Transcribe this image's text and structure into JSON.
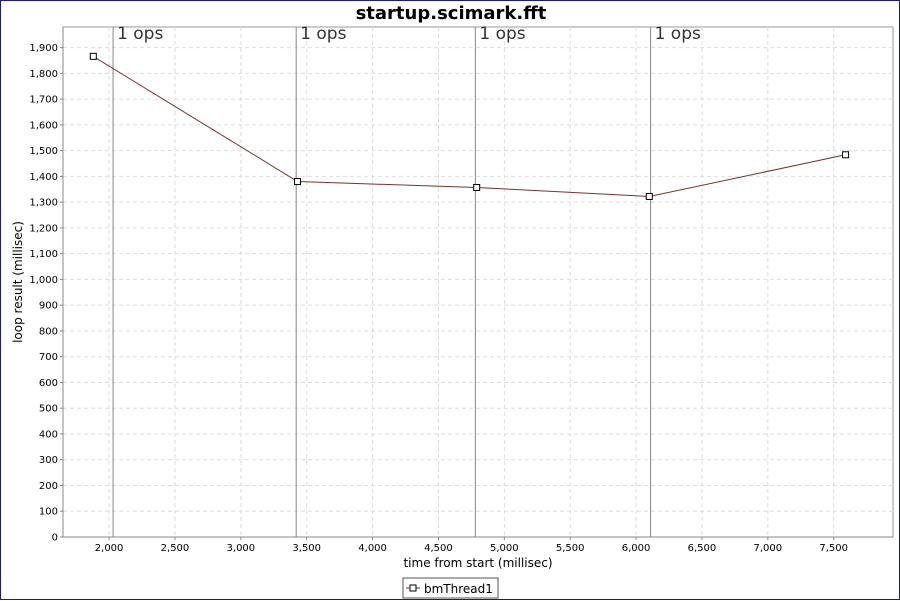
{
  "chart_data": {
    "type": "line",
    "title": "startup.scimark.fft",
    "xlabel": "time from start (millisec)",
    "ylabel": "loop result (millisec)",
    "xlim": [
      1650,
      7950
    ],
    "ylim": [
      0,
      1980
    ],
    "x_ticks": [
      2000,
      2500,
      3000,
      3500,
      4000,
      4500,
      5000,
      5500,
      6000,
      6500,
      7000,
      7500
    ],
    "y_ticks": [
      0,
      100,
      200,
      300,
      400,
      500,
      600,
      700,
      800,
      900,
      1000,
      1100,
      1200,
      1300,
      1400,
      1500,
      1600,
      1700,
      1800,
      1900
    ],
    "grid": true,
    "legend_position": "bottom-center",
    "series": [
      {
        "name": "bmThread1",
        "color": "#7a3030",
        "marker": "square",
        "x": [
          1880,
          3430,
          4790,
          6100,
          7590
        ],
        "y": [
          1866,
          1380,
          1357,
          1322,
          1484
        ]
      }
    ],
    "markers": [
      {
        "x": 2030,
        "label": "1 ops"
      },
      {
        "x": 3420,
        "label": "1 ops"
      },
      {
        "x": 4780,
        "label": "1 ops"
      },
      {
        "x": 6110,
        "label": "1 ops"
      }
    ]
  }
}
